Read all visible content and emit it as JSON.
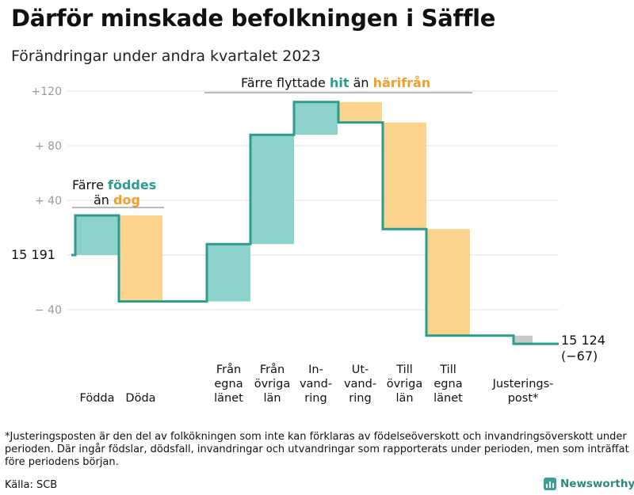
{
  "header": {
    "title": "Därför minskade befolkningen i Säffle",
    "subtitle": "Förändringar under andra kvartalet 2023"
  },
  "colors": {
    "positive": "#8dd3cb",
    "negative": "#fbd38d",
    "adjustment": "#c8c8c8",
    "line": "#2a9d8f",
    "teal_text": "#2a9d8f",
    "orange_text": "#f0a02a",
    "grid": "#e3e3e3"
  },
  "annotations": {
    "born_line1": "Färre ",
    "born_word": "föddes",
    "born_line2": "än ",
    "died_word": "dog",
    "moved_prefix": "Färre flyttade ",
    "moved_hit": "hit",
    "moved_mid": " än ",
    "moved_harifran": "härifrån"
  },
  "labels": {
    "start": "15  191",
    "end_value": "15 124",
    "end_change": "(−67)"
  },
  "chart_data": {
    "type": "waterfall",
    "title": "Därför minskade befolkningen i Säffle",
    "subtitle": "Förändringar under andra kvartalet 2023",
    "start_value": 15191,
    "end_value": 15124,
    "net_change": -67,
    "ylim": [
      -75,
      125
    ],
    "yticks": [
      {
        "value": 120,
        "label": "+120"
      },
      {
        "value": 80,
        "label": "+  80"
      },
      {
        "value": 40,
        "label": "+  40"
      },
      {
        "value": 0,
        "label": ""
      },
      {
        "value": -40,
        "label": "−  40"
      }
    ],
    "steps": [
      {
        "name": "Födda",
        "label_lines": [
          "Födda"
        ],
        "change": 29,
        "kind": "positive",
        "group": 0
      },
      {
        "name": "Döda",
        "label_lines": [
          "Döda"
        ],
        "change": -63,
        "kind": "negative",
        "group": 0
      },
      {
        "name": "Från egna länet",
        "label_lines": [
          "Från",
          "egna",
          "länet"
        ],
        "change": 42,
        "kind": "positive",
        "group": 1
      },
      {
        "name": "Från övriga län",
        "label_lines": [
          "Från",
          "övriga",
          "län"
        ],
        "change": 80,
        "kind": "positive",
        "group": 1
      },
      {
        "name": "Invandring",
        "label_lines": [
          "In-",
          "vand-",
          "ring"
        ],
        "change": 24,
        "kind": "positive",
        "group": 1
      },
      {
        "name": "Utvandring",
        "label_lines": [
          "Ut-",
          "vand-",
          "ring"
        ],
        "change": -15,
        "kind": "negative",
        "group": 1
      },
      {
        "name": "Till övriga län",
        "label_lines": [
          "Till",
          "övriga",
          "län"
        ],
        "change": -78,
        "kind": "negative",
        "group": 1
      },
      {
        "name": "Till egna länet",
        "label_lines": [
          "Till",
          "egna",
          "länet"
        ],
        "change": -78,
        "kind": "negative",
        "group": 1
      },
      {
        "name": "Justeringspost*",
        "label_lines": [
          "Justerings-",
          "post*"
        ],
        "change": -6,
        "kind": "adjustment",
        "group": 2
      }
    ]
  },
  "footer": {
    "footnote": "*Justeringsposten är den del av folkökningen som inte kan förklaras av födelseöverskott och invandringsöverskott under perioden. Där ingår födslar, dödsfall, invandringar och utvandringar som rapporterats under perioden, men som inträffat före periodens början.",
    "source": "Källa: SCB",
    "brand": "Newsworthy"
  }
}
